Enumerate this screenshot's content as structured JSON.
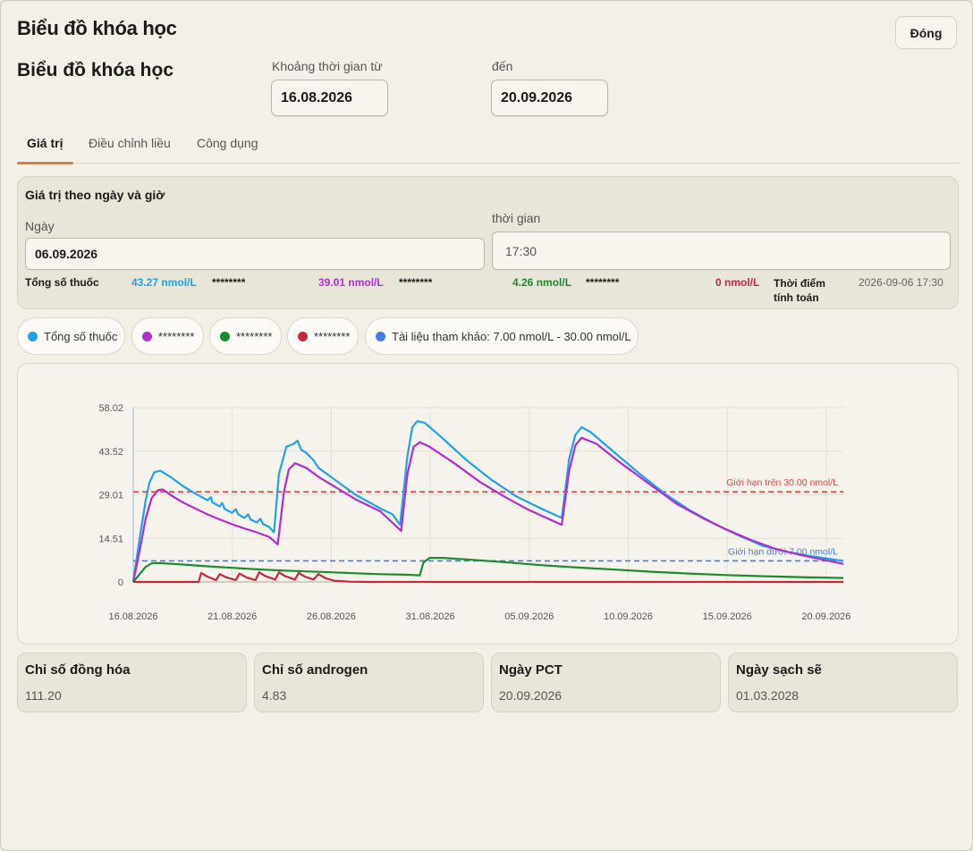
{
  "window": {
    "title": "Biểu đồ khóa học",
    "close_label": "Đóng"
  },
  "header": {
    "title": "Biểu đồ khóa học",
    "from_label": "Khoảng thời gian từ",
    "from_value": "16.08.2026",
    "to_label": "đến",
    "to_value": "20.09.2026"
  },
  "tabs": [
    {
      "label": "Giá trị",
      "active": true
    },
    {
      "label": "Điều chỉnh liều",
      "active": false
    },
    {
      "label": "Công dụng",
      "active": false
    }
  ],
  "values_panel": {
    "title": "Giá trị theo ngày và giờ",
    "date_label": "Ngày",
    "date_value": "06.09.2026",
    "time_label": "thời gian",
    "time_value": "17:30",
    "total_label": "Tổng số thuốc",
    "readouts": [
      {
        "value": "43.27 nmol/L",
        "name": "********",
        "color": "#1fa3e8"
      },
      {
        "value": "39.01 nmol/L",
        "name": "********",
        "color": "#b02ecf"
      },
      {
        "value": "4.26 nmol/L",
        "name": "********",
        "color": "#1c8a2e"
      },
      {
        "value": "0 nmol/L",
        "name": "",
        "color": "#c8283a"
      }
    ],
    "calc_label_line1": "Thời điểm",
    "calc_label_line2": "tính toán",
    "calc_time": "2026-09-06 17:30"
  },
  "legend": [
    {
      "label": "Tổng số thuốc",
      "color": "#1fa3e8"
    },
    {
      "label": "********",
      "color": "#b02ecf"
    },
    {
      "label": "********",
      "color": "#1c8a2e"
    },
    {
      "label": "********",
      "color": "#c8283a"
    },
    {
      "label": "Tài liệu tham khảo: 7.00 nmol/L - 30.00 nmol/L",
      "color": "#3f7fe0"
    }
  ],
  "chart_data": {
    "type": "line",
    "x_ticks": [
      "16.08.2026",
      "21.08.2026",
      "26.08.2026",
      "31.08.2026",
      "05.09.2026",
      "10.09.2026",
      "15.09.2026",
      "20.09.2026"
    ],
    "y_ticks": [
      "0",
      "14.51",
      "29.01",
      "43.52",
      "58.02"
    ],
    "ylim": [
      0,
      58.02
    ],
    "xlim_days": [
      0,
      36
    ],
    "grid": true,
    "reference_lines": [
      {
        "label": "Giới hạn trên 30.00 nmol/L",
        "value": 30,
        "color": "#e04848"
      },
      {
        "label": "Giới hạn dưới 7.00 nmol/L",
        "value": 7,
        "color": "#3f7fe0"
      }
    ],
    "series": [
      {
        "name": "Tổng số thuốc",
        "color": "#1fa3e8",
        "points": [
          [
            0,
            0
          ],
          [
            0.5,
            14
          ],
          [
            1,
            27
          ],
          [
            1.3,
            33
          ],
          [
            1.7,
            36.5
          ],
          [
            2.2,
            37
          ],
          [
            3,
            35
          ],
          [
            4,
            32
          ],
          [
            5,
            29.5
          ],
          [
            6,
            27.2
          ],
          [
            6.3,
            28.2
          ],
          [
            6.4,
            26.5
          ],
          [
            7,
            25.1
          ],
          [
            7.2,
            26.3
          ],
          [
            7.4,
            24.3
          ],
          [
            8,
            23
          ],
          [
            8.3,
            24.2
          ],
          [
            8.5,
            22.5
          ],
          [
            9,
            21.3
          ],
          [
            9.3,
            22.5
          ],
          [
            9.5,
            20.8
          ],
          [
            10,
            19.8
          ],
          [
            10.3,
            21
          ],
          [
            10.5,
            19.3
          ],
          [
            11,
            18.3
          ],
          [
            11.4,
            16.5
          ],
          [
            11.8,
            36
          ],
          [
            12.4,
            45
          ],
          [
            13,
            46
          ],
          [
            13.3,
            47
          ],
          [
            13.6,
            44
          ],
          [
            14,
            43
          ],
          [
            14.6,
            40.5
          ],
          [
            15,
            38
          ],
          [
            16,
            35
          ],
          [
            18,
            29
          ],
          [
            20,
            24.5
          ],
          [
            21,
            22.5
          ],
          [
            21.6,
            19
          ],
          [
            22.2,
            42
          ],
          [
            22.6,
            51.5
          ],
          [
            23,
            53.5
          ],
          [
            23.6,
            53
          ],
          [
            25,
            48
          ],
          [
            27,
            40.5
          ],
          [
            29,
            34
          ],
          [
            31,
            28.5
          ],
          [
            33,
            24.5
          ],
          [
            34.7,
            21.3
          ],
          [
            35.3,
            41
          ],
          [
            35.8,
            49
          ],
          [
            36.3,
            51.5
          ],
          [
            37,
            50
          ],
          [
            39,
            43
          ],
          [
            41,
            36
          ],
          [
            43,
            29.5
          ],
          [
            45,
            24
          ],
          [
            47,
            19.5
          ],
          [
            49,
            15.5
          ],
          [
            51,
            12
          ],
          [
            53,
            10
          ],
          [
            55,
            8.5
          ],
          [
            57.5,
            7
          ]
        ]
      },
      {
        "name": "********",
        "color": "#b02ecf",
        "points": [
          [
            0,
            0
          ],
          [
            0.5,
            10
          ],
          [
            1,
            21
          ],
          [
            1.5,
            28
          ],
          [
            2,
            30.5
          ],
          [
            2.4,
            30.8
          ],
          [
            3,
            29
          ],
          [
            4,
            26.5
          ],
          [
            5,
            24.5
          ],
          [
            6,
            22.5
          ],
          [
            7,
            20.8
          ],
          [
            8,
            19.2
          ],
          [
            9,
            17.8
          ],
          [
            10,
            16.5
          ],
          [
            11,
            15
          ],
          [
            11.7,
            12.5
          ],
          [
            12.2,
            30
          ],
          [
            12.6,
            37.5
          ],
          [
            13.1,
            39.5
          ],
          [
            14,
            38
          ],
          [
            15,
            35
          ],
          [
            16,
            32.5
          ],
          [
            18,
            27.5
          ],
          [
            20,
            23.5
          ],
          [
            21.7,
            17
          ],
          [
            22.2,
            36
          ],
          [
            22.7,
            45
          ],
          [
            23.2,
            46.5
          ],
          [
            24,
            45
          ],
          [
            26,
            39.5
          ],
          [
            28,
            33.5
          ],
          [
            30,
            28.5
          ],
          [
            32,
            24
          ],
          [
            34.7,
            19
          ],
          [
            35.3,
            37
          ],
          [
            35.8,
            45.5
          ],
          [
            36.3,
            48
          ],
          [
            37.5,
            46
          ],
          [
            39.5,
            39.5
          ],
          [
            42,
            32
          ],
          [
            44,
            26
          ],
          [
            46,
            21.5
          ],
          [
            48,
            17.5
          ],
          [
            50,
            14
          ],
          [
            52,
            11
          ],
          [
            54,
            9
          ],
          [
            57.5,
            6
          ]
        ]
      },
      {
        "name": "********",
        "color": "#1c8a2e",
        "points": [
          [
            0,
            0
          ],
          [
            0.5,
            2.5
          ],
          [
            1,
            5
          ],
          [
            1.5,
            6.2
          ],
          [
            2,
            6.3
          ],
          [
            4,
            5.8
          ],
          [
            6,
            5.2
          ],
          [
            8,
            4.7
          ],
          [
            10,
            4.2
          ],
          [
            12,
            3.8
          ],
          [
            14,
            3.5
          ],
          [
            16,
            3.2
          ],
          [
            18,
            2.9
          ],
          [
            20,
            2.6
          ],
          [
            22,
            2.4
          ],
          [
            23.2,
            2.2
          ],
          [
            23.5,
            6.5
          ],
          [
            24,
            8
          ],
          [
            25,
            8
          ],
          [
            27,
            7.5
          ],
          [
            30,
            6.6
          ],
          [
            33,
            5.6
          ],
          [
            36,
            4.8
          ],
          [
            39,
            4.1
          ],
          [
            42,
            3.4
          ],
          [
            45,
            2.8
          ],
          [
            48,
            2.3
          ],
          [
            51,
            1.9
          ],
          [
            54,
            1.6
          ],
          [
            57.5,
            1.3
          ]
        ]
      },
      {
        "name": "********",
        "color": "#c8283a",
        "points": [
          [
            0,
            0
          ],
          [
            5.3,
            0
          ],
          [
            5.5,
            3
          ],
          [
            6,
            1.8
          ],
          [
            6.7,
            0.6
          ],
          [
            7,
            2.6
          ],
          [
            7.5,
            1.6
          ],
          [
            8.3,
            0.6
          ],
          [
            8.6,
            2.8
          ],
          [
            9.1,
            1.6
          ],
          [
            9.9,
            0.6
          ],
          [
            10.2,
            3.2
          ],
          [
            10.7,
            1.9
          ],
          [
            11.5,
            0.8
          ],
          [
            11.8,
            3.2
          ],
          [
            12.3,
            1.9
          ],
          [
            13.1,
            0.8
          ],
          [
            13.4,
            3
          ],
          [
            13.9,
            1.8
          ],
          [
            14.6,
            0.8
          ],
          [
            15,
            2.6
          ],
          [
            15.6,
            1.2
          ],
          [
            16.3,
            0.4
          ],
          [
            17.5,
            0.1
          ],
          [
            19,
            0
          ],
          [
            57.5,
            0
          ]
        ]
      }
    ],
    "x_scale": "days since 16.08.2026 (0..57.5 span mapped to plot width)"
  },
  "stats": [
    {
      "title": "Chỉ số đồng hóa",
      "value": "111.20"
    },
    {
      "title": "Chỉ số androgen",
      "value": "4.83"
    },
    {
      "title": "Ngày PCT",
      "value": "20.09.2026"
    },
    {
      "title": "Ngày sạch sẽ",
      "value": "01.03.2028"
    }
  ]
}
